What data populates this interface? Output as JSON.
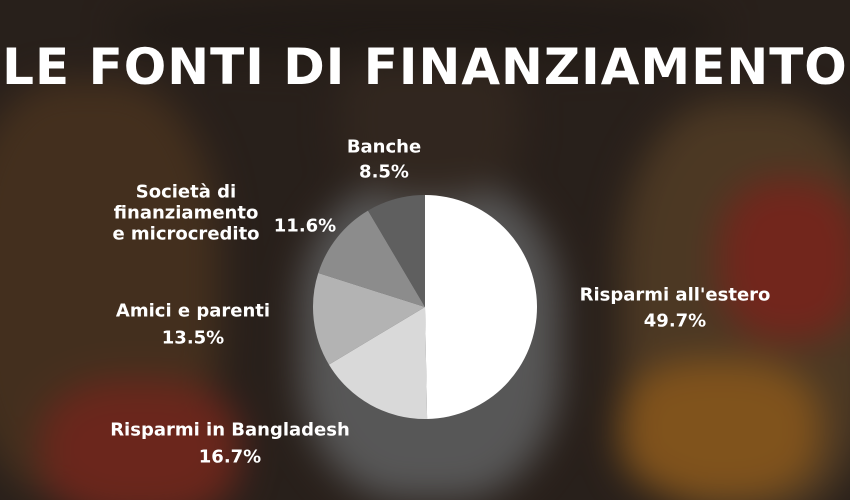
{
  "chart_data": {
    "type": "pie",
    "title": "LE FONTI DI FINANZIAMENTO",
    "categories": [
      "Risparmi all'estero",
      "Risparmi in Bangladesh",
      "Amici e parenti",
      "Società di finanziamento e microcredito",
      "Banche"
    ],
    "values": [
      49.7,
      16.7,
      13.5,
      11.6,
      8.5
    ],
    "value_labels": [
      "49.7%",
      "16.7%",
      "13.5%",
      "11.6%",
      "8.5%"
    ],
    "colors": [
      "#ffffff",
      "#d9d9d9",
      "#b3b3b3",
      "#8c8c8c",
      "#5f5f5f"
    ]
  }
}
